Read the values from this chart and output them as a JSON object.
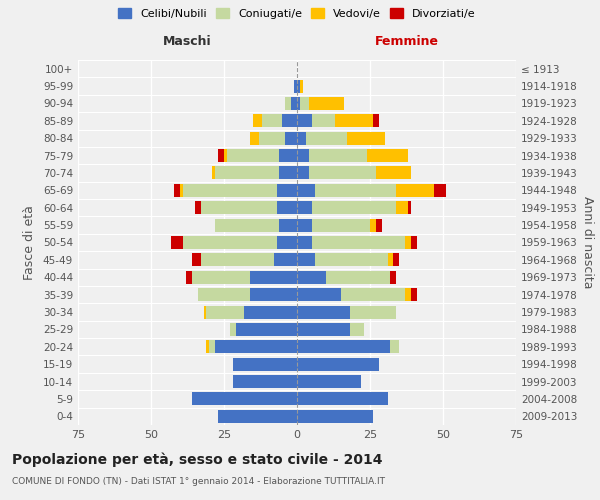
{
  "age_groups": [
    "0-4",
    "5-9",
    "10-14",
    "15-19",
    "20-24",
    "25-29",
    "30-34",
    "35-39",
    "40-44",
    "45-49",
    "50-54",
    "55-59",
    "60-64",
    "65-69",
    "70-74",
    "75-79",
    "80-84",
    "85-89",
    "90-94",
    "95-99",
    "100+"
  ],
  "birth_years": [
    "2009-2013",
    "2004-2008",
    "1999-2003",
    "1994-1998",
    "1989-1993",
    "1984-1988",
    "1979-1983",
    "1974-1978",
    "1969-1973",
    "1964-1968",
    "1959-1963",
    "1954-1958",
    "1949-1953",
    "1944-1948",
    "1939-1943",
    "1934-1938",
    "1929-1933",
    "1924-1928",
    "1919-1923",
    "1914-1918",
    "≤ 1913"
  ],
  "maschi": {
    "celibi": [
      27,
      36,
      22,
      22,
      28,
      21,
      18,
      16,
      16,
      8,
      7,
      6,
      7,
      7,
      6,
      6,
      4,
      5,
      2,
      1,
      0
    ],
    "coniugati": [
      0,
      0,
      0,
      0,
      2,
      2,
      13,
      18,
      20,
      25,
      32,
      22,
      26,
      32,
      22,
      18,
      9,
      7,
      2,
      0,
      0
    ],
    "vedovi": [
      0,
      0,
      0,
      0,
      1,
      0,
      1,
      0,
      0,
      0,
      0,
      0,
      0,
      1,
      1,
      1,
      3,
      3,
      0,
      0,
      0
    ],
    "divorziati": [
      0,
      0,
      0,
      0,
      0,
      0,
      0,
      0,
      2,
      3,
      4,
      0,
      2,
      2,
      0,
      2,
      0,
      0,
      0,
      0,
      0
    ]
  },
  "femmine": {
    "nubili": [
      26,
      31,
      22,
      28,
      32,
      18,
      18,
      15,
      10,
      6,
      5,
      5,
      5,
      6,
      4,
      4,
      3,
      5,
      1,
      1,
      0
    ],
    "coniugate": [
      0,
      0,
      0,
      0,
      3,
      5,
      16,
      22,
      22,
      25,
      32,
      20,
      29,
      28,
      23,
      20,
      14,
      8,
      3,
      0,
      0
    ],
    "vedove": [
      0,
      0,
      0,
      0,
      0,
      0,
      0,
      2,
      0,
      2,
      2,
      2,
      4,
      13,
      12,
      14,
      13,
      13,
      12,
      1,
      0
    ],
    "divorziate": [
      0,
      0,
      0,
      0,
      0,
      0,
      0,
      2,
      2,
      2,
      2,
      2,
      1,
      4,
      0,
      0,
      0,
      2,
      0,
      0,
      0
    ]
  },
  "colors": {
    "celibi": "#4472c4",
    "coniugati": "#c5d9a0",
    "vedovi": "#ffc000",
    "divorziati": "#cc0000"
  },
  "xlim": 75,
  "title": "Popolazione per età, sesso e stato civile - 2014",
  "subtitle": "COMUNE DI FONDO (TN) - Dati ISTAT 1° gennaio 2014 - Elaborazione TUTTITALIA.IT",
  "ylabel_left": "Fasce di età",
  "ylabel_right": "Anni di nascita",
  "xlabel_maschi": "Maschi",
  "xlabel_femmine": "Femmine",
  "legend_labels": [
    "Celibi/Nubili",
    "Coniugati/e",
    "Vedovi/e",
    "Divorziati/e"
  ],
  "bg_color": "#f0f0f0"
}
